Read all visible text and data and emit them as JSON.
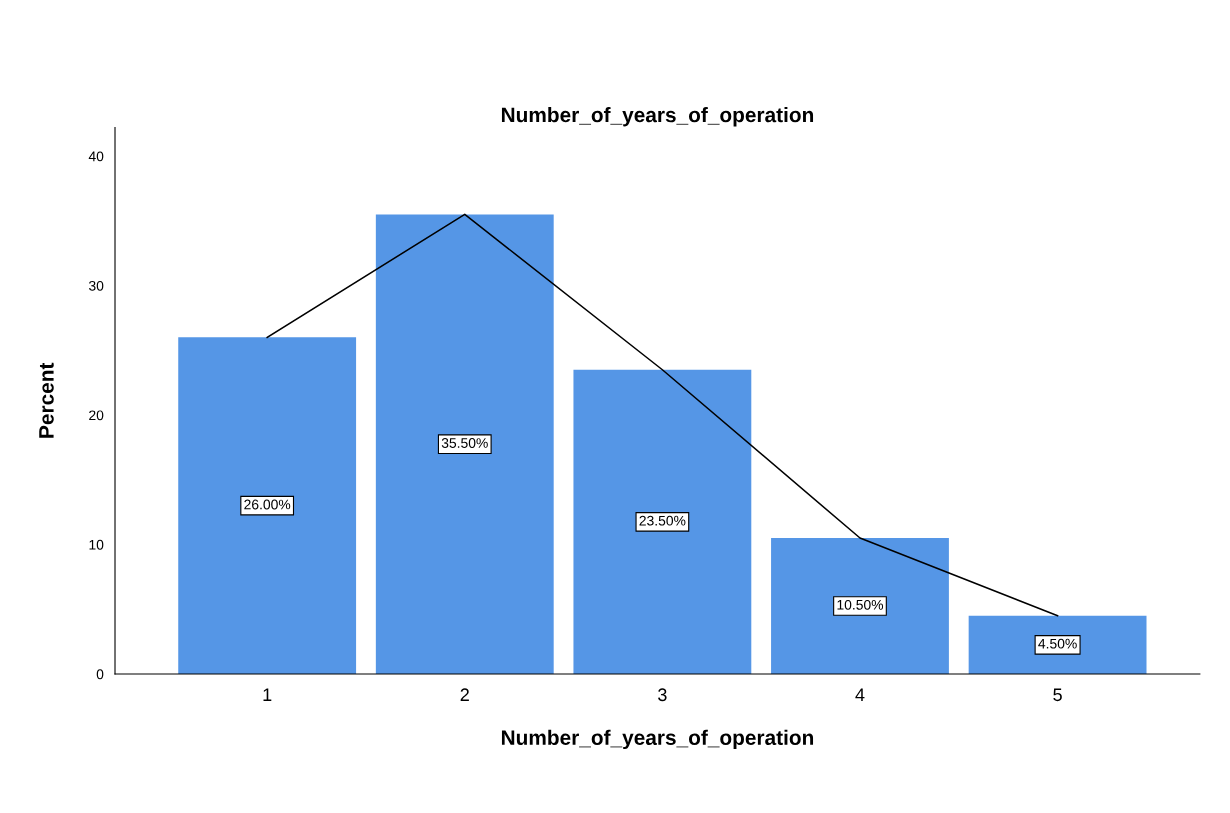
{
  "chart_data": {
    "type": "bar",
    "title": "Number_of_years_of_operation",
    "xlabel": "Number_of_years_of_operation",
    "ylabel": "Percent",
    "categories": [
      "1",
      "2",
      "3",
      "4",
      "5"
    ],
    "series": [
      {
        "color": "#5596e6",
        "values": [
          26.0,
          35.5,
          23.5,
          10.5,
          4.5
        ],
        "value_labels": [
          "26.00%",
          "35.50%",
          "23.50%",
          "10.50%",
          "4.50%"
        ]
      },
      {
        "type": "line",
        "color": "#000000",
        "values": [
          26.0,
          35.5,
          23.5,
          10.5,
          4.5
        ]
      }
    ],
    "ylim": [
      0,
      42.2
    ],
    "yticks": [
      0,
      10,
      20,
      30,
      40
    ],
    "grid": false
  }
}
